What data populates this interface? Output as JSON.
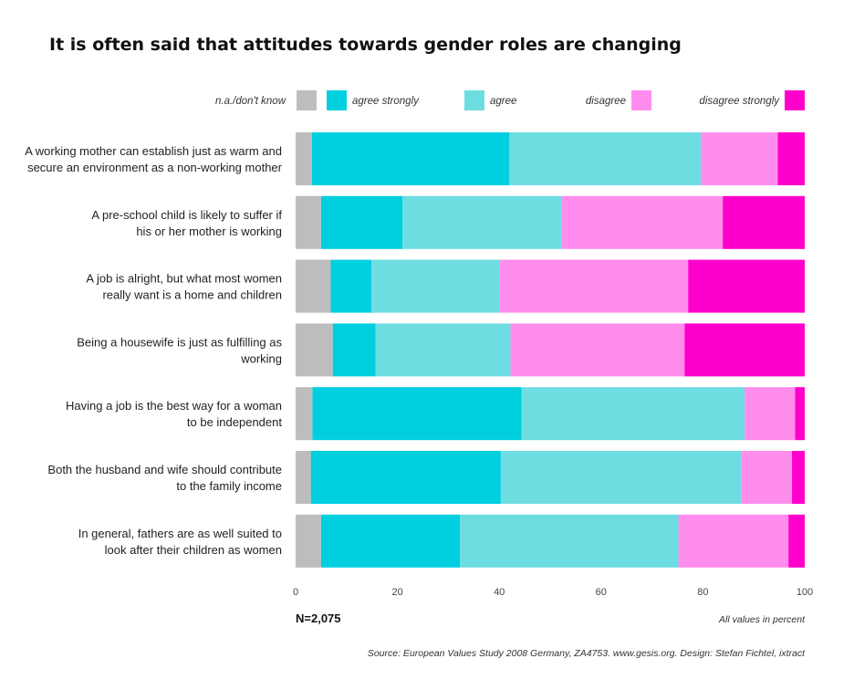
{
  "chart_data": {
    "type": "bar",
    "orientation": "horizontal",
    "stacked": true,
    "title": "It is often said that attitudes towards gender roles are changing",
    "xlim": [
      0,
      100
    ],
    "xticks": [
      0,
      20,
      40,
      60,
      80,
      100
    ],
    "categories": [
      [
        "A working mother can establish just as warm and",
        "secure an environment as a non-working mother"
      ],
      [
        "A pre-school child is likely to suffer if",
        "his or her mother is working"
      ],
      [
        "A job is alright, but what most women",
        "really want is a home and children"
      ],
      [
        "Being a housewife is just as fulfilling as",
        "working"
      ],
      [
        "Having a job is the best way for a woman",
        "to be independent"
      ],
      [
        "Both the husband and wife should contribute",
        "to the family income"
      ],
      [
        "In general, fathers are as well suited to",
        "look after their children as women"
      ]
    ],
    "series": [
      {
        "name": "n.a./don't know",
        "color": "#bdbdbd",
        "values": [
          3.2,
          5.0,
          6.9,
          7.3,
          3.3,
          3.0,
          5.0
        ]
      },
      {
        "name": "agree strongly",
        "color": "#00cfe0",
        "values": [
          38.8,
          16.0,
          8.0,
          8.4,
          41.1,
          37.3,
          27.3
        ]
      },
      {
        "name": "agree",
        "color": "#6ddde2",
        "values": [
          37.6,
          31.3,
          25.1,
          26.5,
          43.8,
          47.2,
          42.9
        ]
      },
      {
        "name": "disagree",
        "color": "#ff8ded",
        "values": [
          15.1,
          31.6,
          37.1,
          34.2,
          9.9,
          10.0,
          21.6
        ]
      },
      {
        "name": "disagree strongly",
        "color": "#ff00cc",
        "values": [
          5.3,
          16.1,
          22.9,
          23.6,
          1.9,
          2.5,
          3.2
        ]
      }
    ],
    "n_label": "N=2,075",
    "unit_note": "All values in percent",
    "source": "Source: European Values Study 2008 Germany, ZA4753. www.gesis.org. Design: Stefan Fichtel, ixtract"
  }
}
